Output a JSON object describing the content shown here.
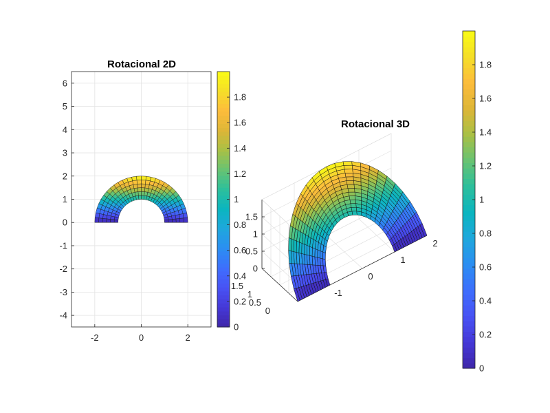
{
  "palette": [
    "#3e26a8",
    "#4538d7",
    "#4852f4",
    "#3e6efd",
    "#2b8ef2",
    "#1fa7dd",
    "#0bb5c0",
    "#2cbf9c",
    "#67c373",
    "#a8c046",
    "#ddb637",
    "#fdbc3c",
    "#f5de29",
    "#f9fb15"
  ],
  "chart_data": [
    {
      "type": "surface",
      "title": "Rotacional 2D",
      "view": "2d",
      "xlim": [
        -3,
        3
      ],
      "ylim": [
        -4.5,
        6.5
      ],
      "xticks": [
        -2,
        0,
        2
      ],
      "yticks": [
        6,
        5,
        4,
        3,
        2,
        1,
        0,
        -1,
        -2,
        -3,
        -4
      ],
      "grid": true,
      "domain": {
        "r_min": 1,
        "r_max": 2,
        "theta_min_deg": 0,
        "theta_max_deg": 180
      },
      "mesh": {
        "radial_divisions": 6,
        "angular_divisions": 30
      },
      "color_value": "y (vertical coordinate)",
      "colorbar": {
        "range": [
          0,
          2
        ],
        "ticks": [
          1.8,
          1.6,
          1.4,
          1.2,
          1,
          0.8,
          0.6,
          0.4,
          0.2,
          0
        ],
        "tick_labels": [
          "1.8",
          "1.6",
          "1.4",
          "1.2",
          "1",
          "0.8",
          "0.6",
          "0.4",
          "0.2",
          "0"
        ]
      }
    },
    {
      "type": "surface",
      "title": "Rotacional 3D",
      "view": "3d",
      "x_ticks": [
        -1,
        0,
        1,
        2
      ],
      "y_ticks": [
        1.5,
        1,
        0.5,
        0
      ],
      "z_ticks": [
        1.5,
        1,
        0.5,
        0
      ],
      "x_tick_labels": [
        "-1",
        "0",
        "1",
        "2"
      ],
      "y_tick_labels": [
        "1.5",
        "1",
        "0.5",
        "0"
      ],
      "z_tick_labels": [
        "1.5",
        "1",
        "0.5",
        "0"
      ],
      "zlim": [
        0,
        2
      ],
      "grid": true,
      "domain": {
        "r_min": 1,
        "r_max": 2,
        "theta_min_deg": 0,
        "theta_max_deg": 180
      },
      "mesh": {
        "radial_divisions": 14,
        "angular_divisions": 26
      },
      "surface_height": "z = y (height equals vertical coordinate of the half annulus)",
      "colorbar": {
        "range": [
          0,
          2
        ],
        "ticks": [
          1.8,
          1.6,
          1.4,
          1.2,
          1,
          0.8,
          0.6,
          0.4,
          0.2,
          0
        ],
        "tick_labels": [
          "1.8",
          "1.6",
          "1.4",
          "1.2",
          "1",
          "0.8",
          "0.6",
          "0.4",
          "0.2",
          "0"
        ]
      }
    }
  ]
}
